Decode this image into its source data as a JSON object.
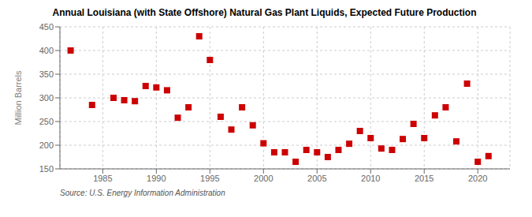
{
  "chart_data": {
    "type": "scatter",
    "title": "Annual Louisiana (with State Offshore) Natural Gas Plant Liquids, Expected Future Production",
    "y_label": "Million Barrels",
    "annotation": "Source: U.S. Energy Information Administration",
    "x": [
      1982,
      1984,
      1986,
      1987,
      1988,
      1989,
      1990,
      1991,
      1992,
      1993,
      1994,
      1995,
      1996,
      1997,
      1998,
      1999,
      2000,
      2001,
      2002,
      2003,
      2004,
      2005,
      2006,
      2007,
      2008,
      2009,
      2010,
      2011,
      2012,
      2013,
      2014,
      2015,
      2016,
      2017,
      2018,
      2019,
      2020,
      2021
    ],
    "values": [
      400,
      285,
      300,
      295,
      293,
      325,
      322,
      316,
      258,
      280,
      430,
      380,
      260,
      233,
      280,
      242,
      204,
      185,
      185,
      165,
      190,
      185,
      175,
      190,
      203,
      230,
      215,
      193,
      190,
      213,
      245,
      215,
      263,
      280,
      208,
      330,
      165,
      177
    ],
    "xlim": [
      1981,
      2023
    ],
    "ylim": [
      150,
      450
    ],
    "xticks": [
      1985,
      1990,
      1995,
      2000,
      2005,
      2010,
      2015,
      2020
    ],
    "yticks": [
      150,
      200,
      250,
      300,
      350,
      400,
      450
    ],
    "color": "#cc0000",
    "marker": "square",
    "grid": true
  }
}
